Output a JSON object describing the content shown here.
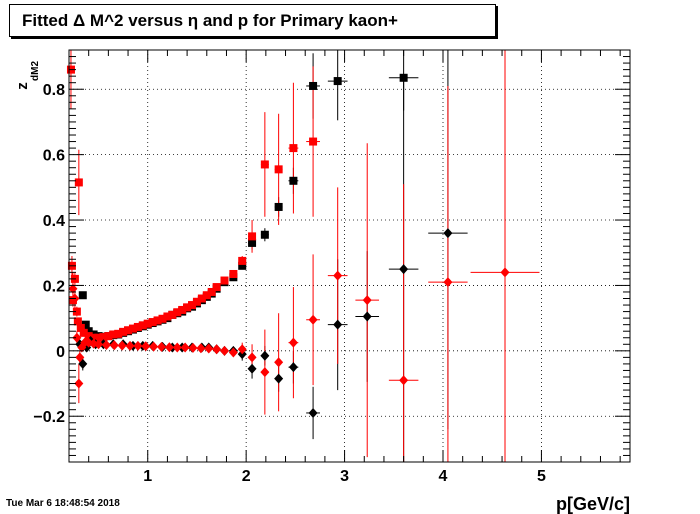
{
  "chart_data": {
    "type": "scatter",
    "title": "Fitted Δ M^2 versus η and p for Primary kaon+",
    "xlabel": "p[GeV/c]",
    "ylabel": "z",
    "ylabel_sub": "dM2",
    "xlim": [
      0.2,
      5.9
    ],
    "ylim": [
      -0.34,
      0.92
    ],
    "x_ticks": [
      1,
      2,
      3,
      4,
      5
    ],
    "y_ticks": [
      -0.2,
      0,
      0.2,
      0.4,
      0.6,
      0.8
    ],
    "x_tick_labels": [
      "1",
      "2",
      "3",
      "4",
      "5"
    ],
    "y_tick_labels": [
      "−0.2",
      "0",
      "0.2",
      "0.4",
      "0.6",
      "0.8"
    ],
    "grid": true,
    "legend": "none",
    "colors": {
      "black": "#000000",
      "red": "#ff0000"
    },
    "series": [
      {
        "marker": "square",
        "color": "#000000",
        "points": [
          [
            0.34,
            0.17,
            0.005,
            0.01
          ],
          [
            0.37,
            0.08,
            0.01,
            0.005
          ],
          [
            0.4,
            0.06,
            0.01,
            0.005
          ],
          [
            0.45,
            0.05,
            0.01,
            0.005
          ],
          [
            0.5,
            0.045,
            0.01,
            0.005
          ],
          [
            0.55,
            0.043,
            0.01,
            0.005
          ],
          [
            0.6,
            0.045,
            0.01,
            0.005
          ],
          [
            0.65,
            0.048,
            0.01,
            0.005
          ],
          [
            0.7,
            0.05,
            0.01,
            0.005
          ],
          [
            0.75,
            0.055,
            0.01,
            0.005
          ],
          [
            0.8,
            0.06,
            0.01,
            0.005
          ],
          [
            0.85,
            0.065,
            0.01,
            0.005
          ],
          [
            0.9,
            0.07,
            0.01,
            0.005
          ],
          [
            0.95,
            0.075,
            0.01,
            0.005
          ],
          [
            1.0,
            0.08,
            0.01,
            0.005
          ],
          [
            1.05,
            0.085,
            0.01,
            0.005
          ],
          [
            1.1,
            0.09,
            0.01,
            0.005
          ],
          [
            1.15,
            0.095,
            0.01,
            0.005
          ],
          [
            1.2,
            0.1,
            0.01,
            0.005
          ],
          [
            1.25,
            0.11,
            0.01,
            0.005
          ],
          [
            1.3,
            0.115,
            0.01,
            0.005
          ],
          [
            1.35,
            0.12,
            0.01,
            0.005
          ],
          [
            1.4,
            0.13,
            0.01,
            0.005
          ],
          [
            1.45,
            0.135,
            0.01,
            0.005
          ],
          [
            1.5,
            0.145,
            0.01,
            0.005
          ],
          [
            1.55,
            0.155,
            0.01,
            0.005
          ],
          [
            1.6,
            0.165,
            0.01,
            0.005
          ],
          [
            1.65,
            0.175,
            0.01,
            0.005
          ],
          [
            1.7,
            0.19,
            0.01,
            0.005
          ],
          [
            1.78,
            0.21,
            0.03,
            0.008
          ],
          [
            1.87,
            0.225,
            0.03,
            0.01
          ],
          [
            1.96,
            0.26,
            0.03,
            0.01
          ],
          [
            2.06,
            0.33,
            0.04,
            0.02
          ],
          [
            2.19,
            0.355,
            0.04,
            0.02
          ],
          [
            2.33,
            0.44,
            0.04,
            0.03
          ],
          [
            2.48,
            0.52,
            0.05,
            0.04
          ],
          [
            2.68,
            0.81,
            0.07,
            0.1
          ],
          [
            2.93,
            0.825,
            0.1,
            0.12
          ],
          [
            3.6,
            0.835,
            0.15,
            0.1
          ]
        ]
      },
      {
        "marker": "square",
        "color": "#ff0000",
        "points": [
          [
            0.22,
            0.86,
            0.005,
            0.12
          ],
          [
            0.23,
            0.26,
            0.005,
            0.03
          ],
          [
            0.24,
            0.155,
            0.005,
            0.02
          ],
          [
            0.26,
            0.22,
            0.005,
            0.02
          ],
          [
            0.28,
            0.12,
            0.005,
            0.015
          ],
          [
            0.29,
            0.09,
            0.005,
            0.01
          ],
          [
            0.3,
            0.515,
            0.005,
            0.1
          ],
          [
            0.32,
            0.07,
            0.01,
            0.008
          ],
          [
            0.35,
            0.055,
            0.01,
            0.005
          ],
          [
            0.4,
            0.045,
            0.01,
            0.005
          ],
          [
            0.45,
            0.04,
            0.01,
            0.005
          ],
          [
            0.5,
            0.04,
            0.01,
            0.005
          ],
          [
            0.55,
            0.042,
            0.01,
            0.005
          ],
          [
            0.6,
            0.045,
            0.01,
            0.005
          ],
          [
            0.65,
            0.05,
            0.01,
            0.005
          ],
          [
            0.7,
            0.052,
            0.01,
            0.005
          ],
          [
            0.75,
            0.058,
            0.01,
            0.005
          ],
          [
            0.8,
            0.063,
            0.01,
            0.005
          ],
          [
            0.85,
            0.068,
            0.01,
            0.005
          ],
          [
            0.9,
            0.073,
            0.01,
            0.005
          ],
          [
            0.95,
            0.078,
            0.01,
            0.005
          ],
          [
            1.0,
            0.083,
            0.01,
            0.005
          ],
          [
            1.05,
            0.088,
            0.01,
            0.005
          ],
          [
            1.1,
            0.093,
            0.01,
            0.005
          ],
          [
            1.15,
            0.098,
            0.01,
            0.005
          ],
          [
            1.2,
            0.105,
            0.01,
            0.005
          ],
          [
            1.25,
            0.11,
            0.01,
            0.005
          ],
          [
            1.3,
            0.118,
            0.01,
            0.005
          ],
          [
            1.35,
            0.125,
            0.01,
            0.005
          ],
          [
            1.4,
            0.133,
            0.01,
            0.005
          ],
          [
            1.45,
            0.14,
            0.01,
            0.005
          ],
          [
            1.5,
            0.15,
            0.01,
            0.005
          ],
          [
            1.55,
            0.16,
            0.01,
            0.005
          ],
          [
            1.6,
            0.17,
            0.01,
            0.005
          ],
          [
            1.65,
            0.18,
            0.01,
            0.005
          ],
          [
            1.7,
            0.195,
            0.01,
            0.005
          ],
          [
            1.78,
            0.215,
            0.03,
            0.01
          ],
          [
            1.87,
            0.235,
            0.03,
            0.01
          ],
          [
            1.96,
            0.275,
            0.03,
            0.015
          ],
          [
            2.06,
            0.35,
            0.04,
            0.05
          ],
          [
            2.19,
            0.57,
            0.04,
            0.16
          ],
          [
            2.33,
            0.555,
            0.04,
            0.17
          ],
          [
            2.48,
            0.62,
            0.05,
            0.2
          ],
          [
            2.68,
            0.64,
            0.07,
            0.23
          ]
        ]
      },
      {
        "marker": "diamond",
        "color": "#000000",
        "points": [
          [
            0.31,
            0.02,
            0.005,
            0.005
          ],
          [
            0.34,
            -0.04,
            0.005,
            0.02
          ],
          [
            0.38,
            0.01,
            0.01,
            0.005
          ],
          [
            0.42,
            0.03,
            0.01,
            0.005
          ],
          [
            0.47,
            0.02,
            0.01,
            0.005
          ],
          [
            0.55,
            0.02,
            0.02,
            0.005
          ],
          [
            0.65,
            0.02,
            0.02,
            0.005
          ],
          [
            0.75,
            0.02,
            0.02,
            0.005
          ],
          [
            0.85,
            0.015,
            0.02,
            0.005
          ],
          [
            0.95,
            0.015,
            0.02,
            0.005
          ],
          [
            1.05,
            0.015,
            0.02,
            0.005
          ],
          [
            1.15,
            0.012,
            0.02,
            0.005
          ],
          [
            1.25,
            0.01,
            0.02,
            0.005
          ],
          [
            1.35,
            0.01,
            0.02,
            0.005
          ],
          [
            1.45,
            0.01,
            0.02,
            0.005
          ],
          [
            1.55,
            0.01,
            0.02,
            0.005
          ],
          [
            1.62,
            0.01,
            0.02,
            0.005
          ],
          [
            1.7,
            0.005,
            0.02,
            0.005
          ],
          [
            1.78,
            0.0,
            0.03,
            0.01
          ],
          [
            1.87,
            0.0,
            0.03,
            0.01
          ],
          [
            1.96,
            -0.01,
            0.03,
            0.02
          ],
          [
            2.06,
            -0.055,
            0.04,
            0.03
          ],
          [
            2.19,
            -0.015,
            0.04,
            0.03
          ],
          [
            2.33,
            -0.085,
            0.04,
            0.04
          ],
          [
            2.48,
            -0.05,
            0.05,
            0.05
          ],
          [
            2.68,
            -0.19,
            0.07,
            0.08
          ],
          [
            2.93,
            0.08,
            0.1,
            0.2
          ],
          [
            3.23,
            0.105,
            0.12,
            0.2
          ],
          [
            3.6,
            0.25,
            0.15,
            0.59
          ],
          [
            4.05,
            0.36,
            0.2,
            0.6
          ]
        ]
      },
      {
        "marker": "diamond",
        "color": "#ff0000",
        "points": [
          [
            0.24,
            0.19,
            0.005,
            0.05
          ],
          [
            0.26,
            0.16,
            0.005,
            0.03
          ],
          [
            0.28,
            0.04,
            0.005,
            0.02
          ],
          [
            0.3,
            -0.1,
            0.005,
            0.06
          ],
          [
            0.31,
            -0.02,
            0.005,
            0.02
          ],
          [
            0.33,
            0.01,
            0.005,
            0.01
          ],
          [
            0.36,
            0.025,
            0.01,
            0.005
          ],
          [
            0.4,
            0.025,
            0.01,
            0.005
          ],
          [
            0.45,
            0.022,
            0.01,
            0.005
          ],
          [
            0.5,
            0.02,
            0.01,
            0.005
          ],
          [
            0.58,
            0.018,
            0.02,
            0.005
          ],
          [
            0.66,
            0.017,
            0.02,
            0.005
          ],
          [
            0.74,
            0.016,
            0.02,
            0.005
          ],
          [
            0.82,
            0.015,
            0.02,
            0.005
          ],
          [
            0.9,
            0.015,
            0.02,
            0.005
          ],
          [
            0.98,
            0.014,
            0.02,
            0.005
          ],
          [
            1.06,
            0.013,
            0.02,
            0.005
          ],
          [
            1.14,
            0.012,
            0.02,
            0.005
          ],
          [
            1.22,
            0.011,
            0.02,
            0.005
          ],
          [
            1.3,
            0.01,
            0.02,
            0.005
          ],
          [
            1.38,
            0.01,
            0.02,
            0.005
          ],
          [
            1.46,
            0.009,
            0.02,
            0.005
          ],
          [
            1.54,
            0.008,
            0.02,
            0.005
          ],
          [
            1.62,
            0.007,
            0.02,
            0.005
          ],
          [
            1.7,
            0.005,
            0.02,
            0.005
          ],
          [
            1.78,
            0.0,
            0.03,
            0.01
          ],
          [
            1.87,
            -0.005,
            0.03,
            0.01
          ],
          [
            1.96,
            0.005,
            0.03,
            0.02
          ],
          [
            2.06,
            -0.02,
            0.04,
            0.04
          ],
          [
            2.19,
            -0.065,
            0.04,
            0.13
          ],
          [
            2.33,
            -0.035,
            0.04,
            0.15
          ],
          [
            2.48,
            0.025,
            0.05,
            0.17
          ],
          [
            2.68,
            0.095,
            0.07,
            0.2
          ],
          [
            2.93,
            0.23,
            0.1,
            0.27
          ],
          [
            3.23,
            0.155,
            0.12,
            0.48
          ],
          [
            3.6,
            -0.09,
            0.15,
            0.6
          ],
          [
            4.05,
            0.21,
            0.2,
            0.6
          ],
          [
            4.63,
            0.24,
            0.35,
            0.68
          ]
        ]
      }
    ]
  },
  "footer": {
    "date": "Tue Mar  6 18:48:54 2018"
  }
}
